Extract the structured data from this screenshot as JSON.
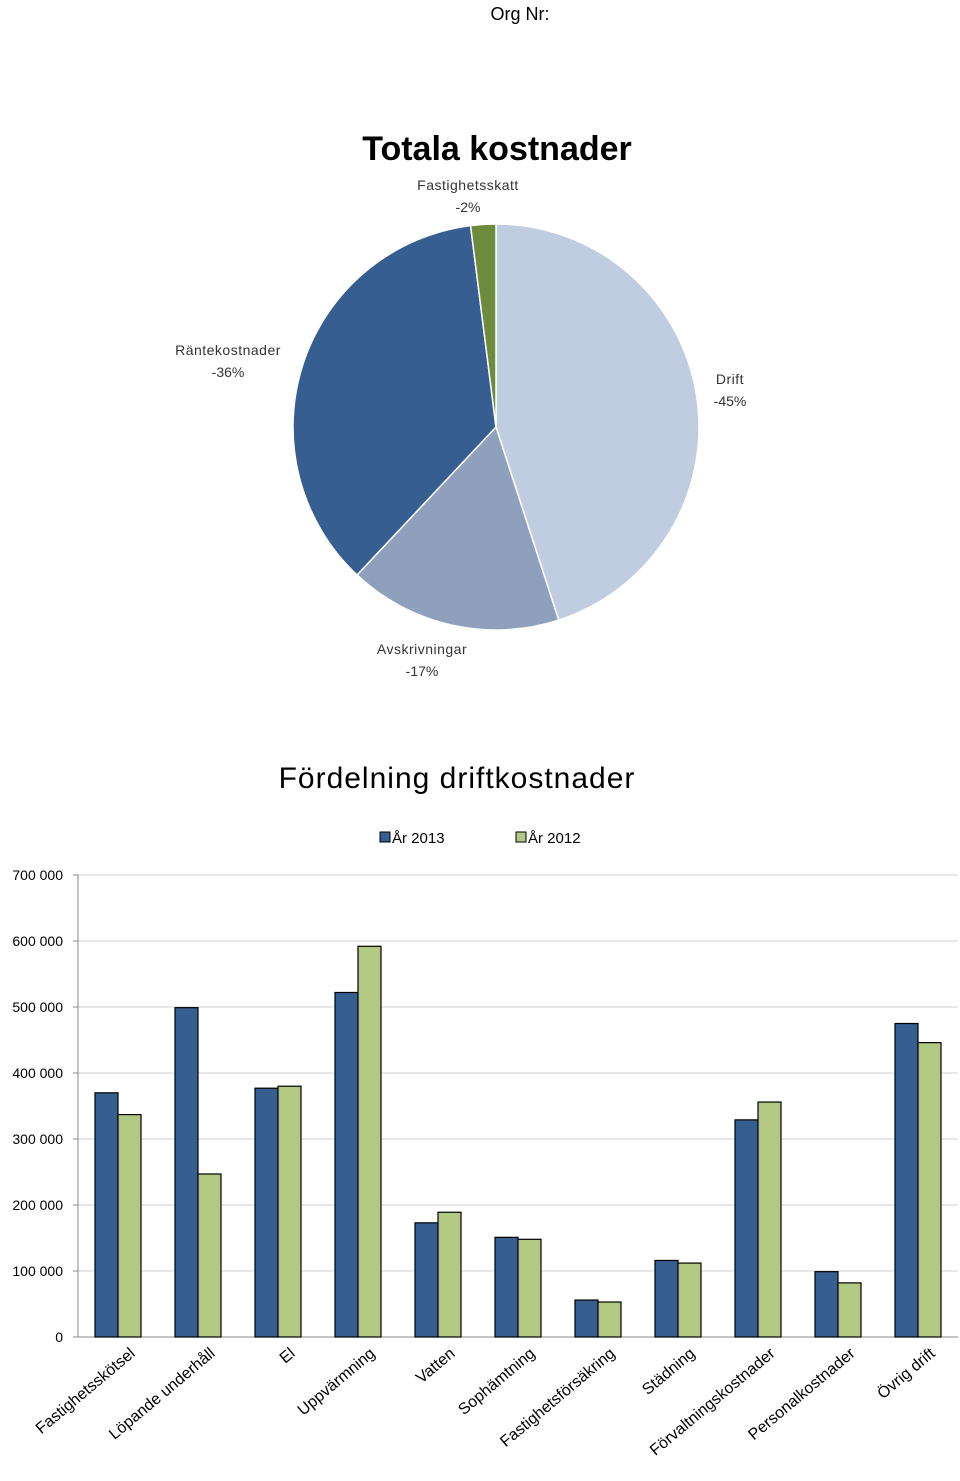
{
  "header": {
    "org_label": "Org Nr:"
  },
  "chart_data": [
    {
      "type": "pie",
      "title": "Totala kostnader",
      "slices": [
        {
          "label": "Drift",
          "value_label": "-45%",
          "value": 45,
          "color": "#c0cde0"
        },
        {
          "label": "Avskrivningar",
          "value_label": "-17%",
          "value": 17,
          "color": "#8fa0bd"
        },
        {
          "label": "Räntekostnader",
          "value_label": "-36%",
          "value": 36,
          "color": "#375e91"
        },
        {
          "label": "Fastighetsskatt",
          "value_label": "-2%",
          "value": 2,
          "color": "#6e8b3d"
        }
      ]
    },
    {
      "type": "bar",
      "title": "Fördelning driftkostnader",
      "categories": [
        "Fastighetsskötsel",
        "Löpande underhåll",
        "El",
        "Uppvärmning",
        "Vatten",
        "Sophämtning",
        "Fastighetsförsäkring",
        "Städning",
        "Förvaltningskostnader",
        "Personalkostnader",
        "Övrig drift"
      ],
      "series": [
        {
          "name": "År 2013",
          "color": "#375e91",
          "values": [
            370000,
            499000,
            377000,
            522000,
            173000,
            151000,
            56000,
            116000,
            329000,
            99000,
            475000
          ]
        },
        {
          "name": "År 2012",
          "color": "#b3c983",
          "values": [
            337000,
            247000,
            380000,
            592000,
            189000,
            148000,
            53000,
            112000,
            356000,
            82000,
            446000
          ]
        }
      ],
      "ylim": [
        0,
        700000
      ],
      "yticks": [
        "0",
        "100 000",
        "200 000",
        "300 000",
        "400 000",
        "500 000",
        "600 000",
        "700 000"
      ],
      "grid": true,
      "legend": "top"
    }
  ]
}
